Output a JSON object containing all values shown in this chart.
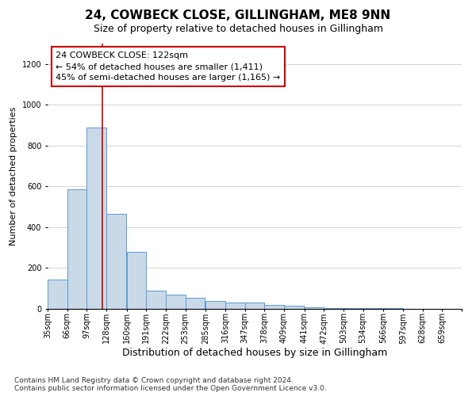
{
  "title1": "24, COWBECK CLOSE, GILLINGHAM, ME8 9NN",
  "title2": "Size of property relative to detached houses in Gillingham",
  "xlabel": "Distribution of detached houses by size in Gillingham",
  "ylabel": "Number of detached properties",
  "bin_labels": [
    "35sqm",
    "66sqm",
    "97sqm",
    "128sqm",
    "160sqm",
    "191sqm",
    "222sqm",
    "253sqm",
    "285sqm",
    "316sqm",
    "347sqm",
    "378sqm",
    "409sqm",
    "441sqm",
    "472sqm",
    "503sqm",
    "534sqm",
    "566sqm",
    "597sqm",
    "628sqm",
    "659sqm"
  ],
  "bin_left_edges": [
    35,
    66,
    97,
    128,
    160,
    191,
    222,
    253,
    285,
    316,
    347,
    378,
    409,
    441,
    472,
    503,
    534,
    566,
    597,
    628,
    659
  ],
  "bar_heights": [
    145,
    585,
    890,
    465,
    280,
    90,
    70,
    55,
    40,
    30,
    30,
    20,
    15,
    8,
    5,
    3,
    2,
    2,
    0,
    0,
    0
  ],
  "bar_color": "#c9d9e8",
  "bar_edge_color": "#5b9bd5",
  "grid_color": "#cccccc",
  "background_color": "#ffffff",
  "annotation_line1": "24 COWBECK CLOSE: 122sqm",
  "annotation_line2": "← 54% of detached houses are smaller (1,411)",
  "annotation_line3": "45% of semi-detached houses are larger (1,165) →",
  "annotation_box_color": "#ffffff",
  "annotation_box_edge": "#cc0000",
  "red_line_x": 122,
  "red_line_color": "#cc0000",
  "ylim": [
    0,
    1300
  ],
  "yticks": [
    0,
    200,
    400,
    600,
    800,
    1000,
    1200
  ],
  "footnote1": "Contains HM Land Registry data © Crown copyright and database right 2024.",
  "footnote2": "Contains public sector information licensed under the Open Government Licence v3.0.",
  "title1_fontsize": 11,
  "title2_fontsize": 9,
  "xlabel_fontsize": 9,
  "ylabel_fontsize": 8,
  "tick_fontsize": 7,
  "annotation_fontsize": 8,
  "footnote_fontsize": 6.5
}
